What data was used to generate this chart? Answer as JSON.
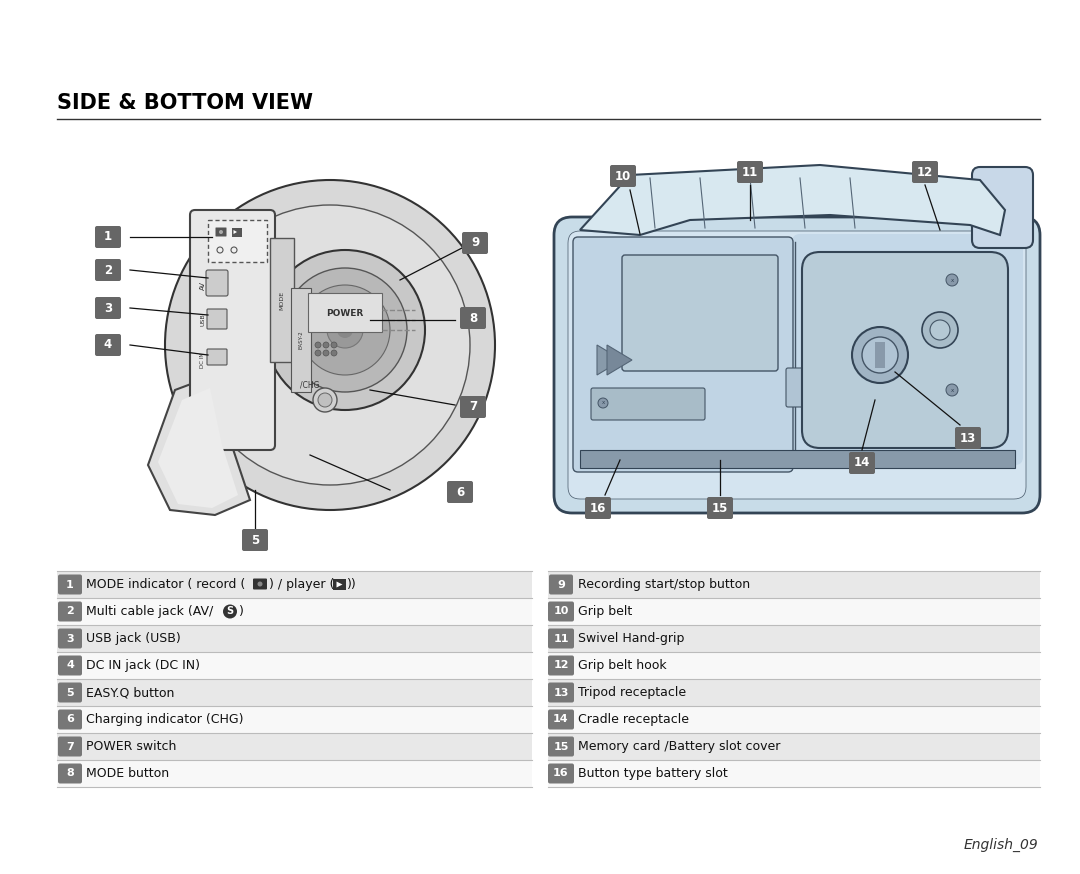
{
  "title": "SIDE & BOTTOM VIEW",
  "background_color": "#ffffff",
  "title_color": "#000000",
  "title_fontsize": 15,
  "left_items": [
    {
      "num": "1",
      "text": "MODE indicator ( record (",
      "text2": ") / player (",
      "text3": "))"
    },
    {
      "num": "2",
      "text": "Multi cable jack (AV/",
      "text2": ")"
    },
    {
      "num": "3",
      "text": "USB jack (USB)"
    },
    {
      "num": "4",
      "text": "DC IN jack (DC IN)"
    },
    {
      "num": "5",
      "text": "EASY.Q button"
    },
    {
      "num": "6",
      "text": "Charging indicator (CHG)"
    },
    {
      "num": "7",
      "text": "POWER switch"
    },
    {
      "num": "8",
      "text": "MODE button"
    }
  ],
  "right_items": [
    {
      "num": "9",
      "text": "Recording start/stop button"
    },
    {
      "num": "10",
      "text": "Grip belt"
    },
    {
      "num": "11",
      "text": "Swivel Hand-grip"
    },
    {
      "num": "12",
      "text": "Grip belt hook"
    },
    {
      "num": "13",
      "text": "Tripod receptacle"
    },
    {
      "num": "14",
      "text": "Cradle receptacle"
    },
    {
      "num": "15",
      "text": "Memory card /Battery slot cover"
    },
    {
      "num": "16",
      "text": "Button type battery slot"
    }
  ],
  "footer": "English_09",
  "row_bg_odd": "#e8e8e8",
  "row_bg_even": "#f8f8f8",
  "sep_color": "#bbbbbb",
  "text_color": "#111111",
  "label_bg": "#888888",
  "label_fg": "#ffffff"
}
